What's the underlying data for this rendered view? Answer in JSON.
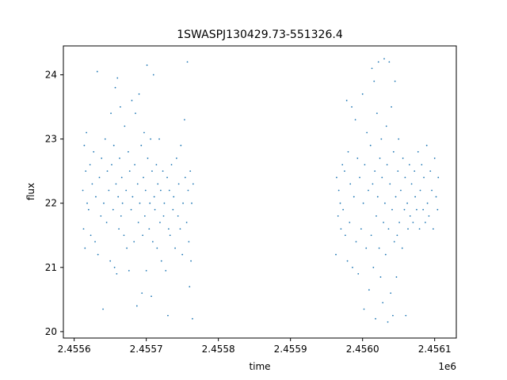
{
  "chart_data": {
    "type": "scatter",
    "title": "1SWASPJ130429.73-551326.4",
    "xlabel": "time",
    "ylabel": "flux",
    "x_offset_label": "1e6",
    "xlim": [
      2455585,
      2456130
    ],
    "ylim": [
      19.9,
      24.45
    ],
    "x_ticks": [
      2455600,
      2455700,
      2455800,
      2455900,
      2456000,
      2456100
    ],
    "x_tick_labels": [
      "2.4556",
      "2.4557",
      "2.4558",
      "2.4559",
      "2.4560",
      "2.4561"
    ],
    "y_ticks": [
      20,
      21,
      22,
      23,
      24
    ],
    "y_tick_labels": [
      "20",
      "21",
      "22",
      "23",
      "24"
    ],
    "grid": false,
    "marker_color": "#1f77b4",
    "series": [
      {
        "points": [
          [
            2455612,
            22.2
          ],
          [
            2455613,
            21.6
          ],
          [
            2455614,
            22.9
          ],
          [
            2455615,
            21.3
          ],
          [
            2455616,
            22.5
          ],
          [
            2455617,
            23.1
          ],
          [
            2455618,
            22.0
          ],
          [
            2455620,
            21.9
          ],
          [
            2455622,
            22.6
          ],
          [
            2455623,
            21.5
          ],
          [
            2455625,
            22.3
          ],
          [
            2455627,
            22.8
          ],
          [
            2455629,
            21.4
          ],
          [
            2455630,
            22.1
          ],
          [
            2455632,
            24.05
          ],
          [
            2455633,
            21.2
          ],
          [
            2455635,
            22.4
          ],
          [
            2455637,
            21.8
          ],
          [
            2455638,
            22.7
          ],
          [
            2455640,
            20.35
          ],
          [
            2455641,
            22.0
          ],
          [
            2455643,
            23.0
          ],
          [
            2455645,
            21.7
          ],
          [
            2455646,
            22.5
          ],
          [
            2455648,
            22.2
          ],
          [
            2455650,
            21.1
          ],
          [
            2455651,
            23.4
          ],
          [
            2455652,
            22.6
          ],
          [
            2455654,
            21.9
          ],
          [
            2455655,
            22.9
          ],
          [
            2455656,
            21.0
          ],
          [
            2455657,
            23.8
          ],
          [
            2455658,
            22.3
          ],
          [
            2455659,
            20.9
          ],
          [
            2455660,
            23.95
          ],
          [
            2455661,
            22.1
          ],
          [
            2455662,
            21.6
          ],
          [
            2455663,
            22.7
          ],
          [
            2455664,
            23.5
          ],
          [
            2455665,
            21.8
          ],
          [
            2455666,
            22.4
          ],
          [
            2455667,
            22.0
          ],
          [
            2455669,
            21.5
          ],
          [
            2455670,
            23.2
          ],
          [
            2455672,
            22.2
          ],
          [
            2455673,
            21.3
          ],
          [
            2455675,
            22.8
          ],
          [
            2455676,
            20.95
          ],
          [
            2455677,
            22.5
          ],
          [
            2455679,
            21.9
          ],
          [
            2455680,
            23.6
          ],
          [
            2455681,
            22.1
          ],
          [
            2455683,
            21.4
          ],
          [
            2455684,
            22.6
          ],
          [
            2455685,
            23.4
          ],
          [
            2455687,
            20.4
          ],
          [
            2455688,
            22.3
          ],
          [
            2455689,
            21.7
          ],
          [
            2455690,
            23.7
          ],
          [
            2455691,
            22.0
          ],
          [
            2455693,
            22.9
          ],
          [
            2455694,
            20.6
          ],
          [
            2455695,
            21.5
          ],
          [
            2455696,
            22.4
          ],
          [
            2455697,
            23.1
          ],
          [
            2455698,
            21.8
          ],
          [
            2455699,
            22.2
          ],
          [
            2455700,
            20.95
          ],
          [
            2455701,
            24.15
          ],
          [
            2455702,
            22.7
          ],
          [
            2455704,
            21.6
          ],
          [
            2455705,
            22.0
          ],
          [
            2455706,
            23.0
          ],
          [
            2455707,
            20.55
          ],
          [
            2455708,
            22.5
          ],
          [
            2455709,
            21.4
          ],
          [
            2455710,
            24.0
          ],
          [
            2455711,
            22.1
          ],
          [
            2455712,
            21.9
          ],
          [
            2455714,
            22.6
          ],
          [
            2455715,
            21.3
          ],
          [
            2455716,
            22.3
          ],
          [
            2455718,
            23.0
          ],
          [
            2455719,
            21.7
          ],
          [
            2455720,
            22.2
          ],
          [
            2455721,
            21.1
          ],
          [
            2455723,
            22.5
          ],
          [
            2455724,
            21.8
          ],
          [
            2455725,
            22.0
          ],
          [
            2455727,
            20.95
          ],
          [
            2455729,
            22.4
          ],
          [
            2455730,
            20.25
          ],
          [
            2455731,
            21.6
          ],
          [
            2455732,
            22.2
          ],
          [
            2455733,
            21.5
          ],
          [
            2455735,
            22.6
          ],
          [
            2455737,
            21.9
          ],
          [
            2455738,
            22.1
          ],
          [
            2455740,
            21.3
          ],
          [
            2455742,
            22.7
          ],
          [
            2455744,
            21.8
          ],
          [
            2455745,
            22.3
          ],
          [
            2455747,
            21.6
          ],
          [
            2455748,
            22.9
          ],
          [
            2455750,
            21.2
          ],
          [
            2455751,
            22.0
          ],
          [
            2455753,
            23.3
          ],
          [
            2455754,
            22.4
          ],
          [
            2455756,
            21.7
          ],
          [
            2455757,
            24.2
          ],
          [
            2455758,
            22.2
          ],
          [
            2455759,
            21.4
          ],
          [
            2455760,
            20.7
          ],
          [
            2455761,
            22.5
          ],
          [
            2455762,
            21.1
          ],
          [
            2455763,
            22.0
          ],
          [
            2455764,
            20.2
          ],
          [
            2455765,
            22.3
          ],
          [
            2455963,
            21.2
          ],
          [
            2455964,
            22.4
          ],
          [
            2455966,
            21.8
          ],
          [
            2455967,
            22.2
          ],
          [
            2455969,
            22.0
          ],
          [
            2455970,
            21.6
          ],
          [
            2455972,
            22.6
          ],
          [
            2455973,
            21.9
          ],
          [
            2455975,
            22.5
          ],
          [
            2455976,
            21.5
          ],
          [
            2455978,
            23.6
          ],
          [
            2455979,
            21.1
          ],
          [
            2455980,
            22.8
          ],
          [
            2455982,
            21.7
          ],
          [
            2455983,
            22.3
          ],
          [
            2455985,
            23.5
          ],
          [
            2455986,
            21.0
          ],
          [
            2455988,
            22.1
          ],
          [
            2455990,
            23.3
          ],
          [
            2455991,
            21.4
          ],
          [
            2455993,
            22.7
          ],
          [
            2455994,
            20.9
          ],
          [
            2455996,
            22.4
          ],
          [
            2455998,
            21.6
          ],
          [
            2456000,
            23.7
          ],
          [
            2456001,
            22.0
          ],
          [
            2456002,
            20.35
          ],
          [
            2456003,
            22.6
          ],
          [
            2456005,
            21.3
          ],
          [
            2456006,
            23.1
          ],
          [
            2456008,
            22.2
          ],
          [
            2456009,
            20.65
          ],
          [
            2456011,
            22.9
          ],
          [
            2456012,
            21.5
          ],
          [
            2456013,
            24.1
          ],
          [
            2456014,
            22.3
          ],
          [
            2456015,
            21.0
          ],
          [
            2456016,
            23.9
          ],
          [
            2456017,
            22.5
          ],
          [
            2456018,
            20.2
          ],
          [
            2456019,
            21.8
          ],
          [
            2456020,
            23.4
          ],
          [
            2456021,
            22.1
          ],
          [
            2456022,
            24.2
          ],
          [
            2456023,
            21.3
          ],
          [
            2456024,
            22.7
          ],
          [
            2456025,
            20.85
          ],
          [
            2456026,
            23.0
          ],
          [
            2456027,
            22.4
          ],
          [
            2456028,
            20.45
          ],
          [
            2456029,
            21.7
          ],
          [
            2456030,
            24.25
          ],
          [
            2456031,
            22.0
          ],
          [
            2456032,
            21.2
          ],
          [
            2456033,
            23.2
          ],
          [
            2456034,
            22.6
          ],
          [
            2456035,
            20.15
          ],
          [
            2456036,
            21.6
          ],
          [
            2456037,
            24.2
          ],
          [
            2456038,
            22.3
          ],
          [
            2456039,
            20.6
          ],
          [
            2456040,
            23.5
          ],
          [
            2456041,
            21.9
          ],
          [
            2456042,
            20.25
          ],
          [
            2456043,
            22.8
          ],
          [
            2456044,
            21.4
          ],
          [
            2456045,
            23.9
          ],
          [
            2456046,
            22.1
          ],
          [
            2456047,
            20.85
          ],
          [
            2456048,
            21.5
          ],
          [
            2456049,
            22.5
          ],
          [
            2456050,
            23.0
          ],
          [
            2456051,
            21.7
          ],
          [
            2456053,
            22.2
          ],
          [
            2456055,
            21.3
          ],
          [
            2456056,
            22.7
          ],
          [
            2456058,
            21.9
          ],
          [
            2456059,
            22.4
          ],
          [
            2456060,
            20.25
          ],
          [
            2456062,
            22.0
          ],
          [
            2456063,
            21.6
          ],
          [
            2456065,
            22.6
          ],
          [
            2456066,
            21.8
          ],
          [
            2456068,
            22.3
          ],
          [
            2456070,
            21.7
          ],
          [
            2456072,
            22.5
          ],
          [
            2456073,
            22.1
          ],
          [
            2456075,
            21.9
          ],
          [
            2456077,
            22.8
          ],
          [
            2456079,
            21.6
          ],
          [
            2456080,
            22.2
          ],
          [
            2456082,
            22.6
          ],
          [
            2456084,
            21.9
          ],
          [
            2456085,
            22.4
          ],
          [
            2456087,
            21.7
          ],
          [
            2456089,
            22.9
          ],
          [
            2456090,
            22.0
          ],
          [
            2456092,
            21.8
          ],
          [
            2456094,
            22.5
          ],
          [
            2456096,
            22.2
          ],
          [
            2456098,
            21.6
          ],
          [
            2456100,
            22.7
          ],
          [
            2456102,
            22.1
          ],
          [
            2456104,
            21.9
          ],
          [
            2456105,
            22.4
          ]
        ]
      }
    ]
  }
}
